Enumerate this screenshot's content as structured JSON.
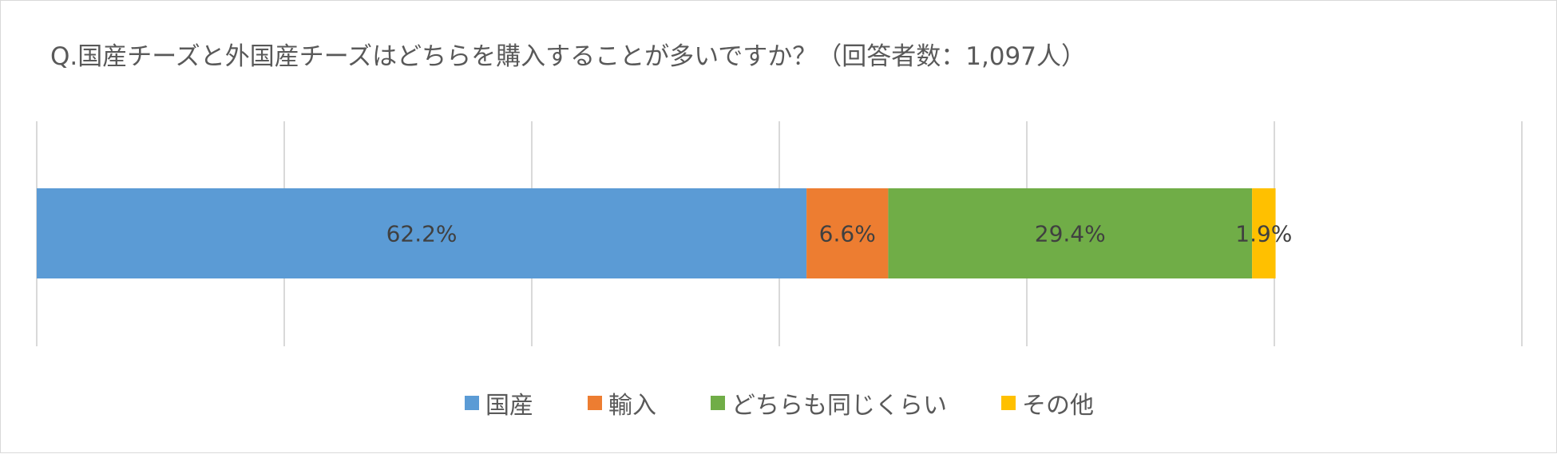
{
  "chart_data": {
    "type": "bar",
    "orientation": "horizontal",
    "stacked": "100%",
    "title": "Q.国産チーズと外国産チーズはどちらを購入することが多いですか？（回答者数：1,097人）",
    "xlim": [
      0,
      120
    ],
    "grid": true,
    "legend_position": "bottom",
    "categories": [
      ""
    ],
    "series": [
      {
        "name": "国産",
        "values": [
          62.2
        ],
        "label": "62.2%",
        "color": "#5b9bd5"
      },
      {
        "name": "輸入",
        "values": [
          6.6
        ],
        "label": "6.6%",
        "color": "#ed7d31"
      },
      {
        "name": "どちらも同じくらい",
        "values": [
          29.4
        ],
        "label": "29.4%",
        "color": "#70ad47"
      },
      {
        "name": "その他",
        "values": [
          1.9
        ],
        "label": "1.9%",
        "color": "#ffc000"
      }
    ]
  }
}
